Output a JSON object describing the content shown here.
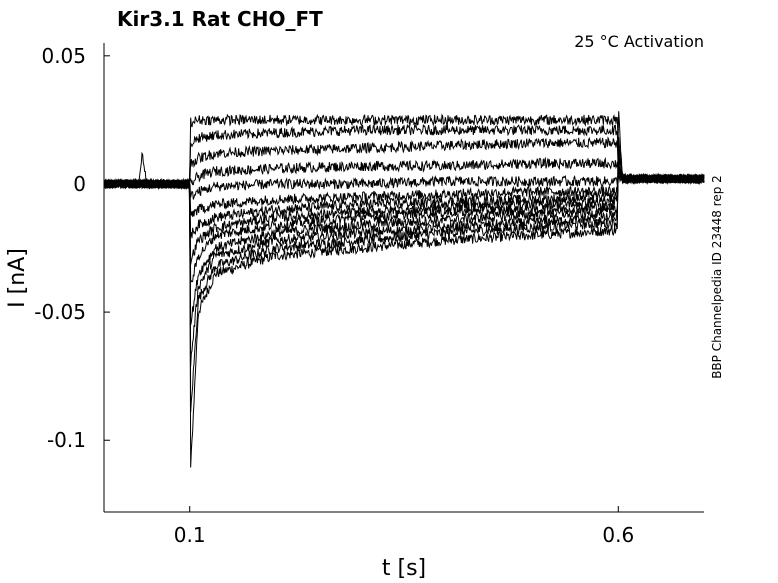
{
  "chart_data": {
    "type": "line",
    "title": "Kir3.1  Rat  CHO_FT",
    "annotation": "25 °C  Activation",
    "side_label": "BBP Channelpedia ID 23448 rep 2",
    "xlabel": "t [s]",
    "ylabel": "I [nA]",
    "xlim": [
      0.0,
      0.7
    ],
    "ylim": [
      -0.128,
      0.055
    ],
    "x_ticks": [
      0.1,
      0.6
    ],
    "x_tick_labels": [
      "0.1",
      "0.6"
    ],
    "y_ticks": [
      0.05,
      0,
      -0.05,
      -0.1
    ],
    "y_tick_labels": [
      "0.05",
      "0",
      "-0.05",
      "-0.1"
    ],
    "grid": false,
    "line_color": "#000000",
    "step_start": 0.1,
    "step_end": 0.6,
    "series": [
      {
        "values": [
          [
            0.0,
            0.0
          ],
          [
            0.04,
            0.0
          ],
          [
            0.045,
            0.012
          ],
          [
            0.05,
            0.0
          ],
          [
            0.1,
            0.0
          ],
          [
            0.101,
            -0.112
          ],
          [
            0.11,
            -0.05
          ],
          [
            0.13,
            -0.035
          ],
          [
            0.2,
            -0.028
          ],
          [
            0.3,
            -0.025
          ],
          [
            0.4,
            -0.022
          ],
          [
            0.5,
            -0.02
          ],
          [
            0.599,
            -0.018
          ],
          [
            0.6,
            0.03
          ],
          [
            0.605,
            0.002
          ],
          [
            0.7,
            0.002
          ]
        ]
      },
      {
        "values": [
          [
            0.0,
            0.0
          ],
          [
            0.1,
            0.0
          ],
          [
            0.101,
            -0.09
          ],
          [
            0.11,
            -0.045
          ],
          [
            0.13,
            -0.032
          ],
          [
            0.2,
            -0.025
          ],
          [
            0.3,
            -0.022
          ],
          [
            0.4,
            -0.019
          ],
          [
            0.5,
            -0.017
          ],
          [
            0.599,
            -0.015
          ],
          [
            0.6,
            0.02
          ],
          [
            0.605,
            0.002
          ],
          [
            0.7,
            0.002
          ]
        ]
      },
      {
        "values": [
          [
            0.0,
            0.0
          ],
          [
            0.1,
            0.0
          ],
          [
            0.101,
            -0.07
          ],
          [
            0.11,
            -0.04
          ],
          [
            0.13,
            -0.028
          ],
          [
            0.2,
            -0.022
          ],
          [
            0.3,
            -0.019
          ],
          [
            0.4,
            -0.017
          ],
          [
            0.5,
            -0.015
          ],
          [
            0.599,
            -0.013
          ],
          [
            0.6,
            0.015
          ],
          [
            0.605,
            0.002
          ],
          [
            0.7,
            0.002
          ]
        ]
      },
      {
        "values": [
          [
            0.0,
            0.0
          ],
          [
            0.1,
            0.0
          ],
          [
            0.101,
            -0.055
          ],
          [
            0.11,
            -0.035
          ],
          [
            0.13,
            -0.025
          ],
          [
            0.2,
            -0.019
          ],
          [
            0.3,
            -0.016
          ],
          [
            0.4,
            -0.014
          ],
          [
            0.5,
            -0.012
          ],
          [
            0.599,
            -0.011
          ],
          [
            0.6,
            0.01
          ],
          [
            0.605,
            0.002
          ],
          [
            0.7,
            0.002
          ]
        ]
      },
      {
        "values": [
          [
            0.0,
            0.0
          ],
          [
            0.1,
            0.0
          ],
          [
            0.101,
            -0.04
          ],
          [
            0.11,
            -0.028
          ],
          [
            0.13,
            -0.02
          ],
          [
            0.2,
            -0.016
          ],
          [
            0.3,
            -0.013
          ],
          [
            0.4,
            -0.011
          ],
          [
            0.5,
            -0.01
          ],
          [
            0.599,
            -0.009
          ],
          [
            0.6,
            0.008
          ],
          [
            0.605,
            0.002
          ],
          [
            0.7,
            0.002
          ]
        ]
      },
      {
        "values": [
          [
            0.0,
            0.0
          ],
          [
            0.1,
            0.0
          ],
          [
            0.101,
            -0.03
          ],
          [
            0.11,
            -0.022
          ],
          [
            0.13,
            -0.017
          ],
          [
            0.2,
            -0.013
          ],
          [
            0.3,
            -0.011
          ],
          [
            0.4,
            -0.009
          ],
          [
            0.5,
            -0.008
          ],
          [
            0.599,
            -0.007
          ],
          [
            0.6,
            0.006
          ],
          [
            0.605,
            0.002
          ],
          [
            0.7,
            0.002
          ]
        ]
      },
      {
        "values": [
          [
            0.0,
            0.0
          ],
          [
            0.1,
            0.0
          ],
          [
            0.101,
            -0.02
          ],
          [
            0.11,
            -0.016
          ],
          [
            0.13,
            -0.013
          ],
          [
            0.2,
            -0.01
          ],
          [
            0.3,
            -0.008
          ],
          [
            0.4,
            -0.007
          ],
          [
            0.5,
            -0.006
          ],
          [
            0.599,
            -0.005
          ],
          [
            0.6,
            0.005
          ],
          [
            0.605,
            0.002
          ],
          [
            0.7,
            0.002
          ]
        ]
      },
      {
        "values": [
          [
            0.0,
            0.0
          ],
          [
            0.1,
            0.0
          ],
          [
            0.101,
            -0.012
          ],
          [
            0.11,
            -0.01
          ],
          [
            0.13,
            -0.008
          ],
          [
            0.2,
            -0.006
          ],
          [
            0.3,
            -0.005
          ],
          [
            0.4,
            -0.004
          ],
          [
            0.5,
            -0.003
          ],
          [
            0.599,
            -0.003
          ],
          [
            0.6,
            0.004
          ],
          [
            0.605,
            0.002
          ],
          [
            0.7,
            0.002
          ]
        ]
      },
      {
        "values": [
          [
            0.0,
            0.0
          ],
          [
            0.1,
            0.0
          ],
          [
            0.101,
            -0.005
          ],
          [
            0.11,
            -0.003
          ],
          [
            0.13,
            -0.001
          ],
          [
            0.2,
            0.0
          ],
          [
            0.3,
            0.0
          ],
          [
            0.4,
            0.001
          ],
          [
            0.5,
            0.001
          ],
          [
            0.599,
            0.001
          ],
          [
            0.6,
            0.003
          ],
          [
            0.605,
            0.002
          ],
          [
            0.7,
            0.002
          ]
        ]
      },
      {
        "values": [
          [
            0.0,
            0.0
          ],
          [
            0.1,
            0.0
          ],
          [
            0.101,
            0.0
          ],
          [
            0.11,
            0.003
          ],
          [
            0.13,
            0.005
          ],
          [
            0.2,
            0.006
          ],
          [
            0.3,
            0.007
          ],
          [
            0.4,
            0.007
          ],
          [
            0.5,
            0.008
          ],
          [
            0.599,
            0.008
          ],
          [
            0.6,
            0.004
          ],
          [
            0.605,
            0.002
          ],
          [
            0.7,
            0.002
          ]
        ]
      },
      {
        "values": [
          [
            0.0,
            0.0
          ],
          [
            0.1,
            0.0
          ],
          [
            0.101,
            0.008
          ],
          [
            0.11,
            0.01
          ],
          [
            0.13,
            0.012
          ],
          [
            0.2,
            0.013
          ],
          [
            0.3,
            0.014
          ],
          [
            0.4,
            0.015
          ],
          [
            0.5,
            0.016
          ],
          [
            0.599,
            0.016
          ],
          [
            0.6,
            0.006
          ],
          [
            0.605,
            0.002
          ],
          [
            0.7,
            0.002
          ]
        ]
      },
      {
        "values": [
          [
            0.0,
            0.0
          ],
          [
            0.1,
            0.0
          ],
          [
            0.101,
            0.016
          ],
          [
            0.11,
            0.018
          ],
          [
            0.13,
            0.019
          ],
          [
            0.2,
            0.02
          ],
          [
            0.3,
            0.021
          ],
          [
            0.4,
            0.021
          ],
          [
            0.5,
            0.021
          ],
          [
            0.599,
            0.021
          ],
          [
            0.6,
            0.008
          ],
          [
            0.605,
            0.002
          ],
          [
            0.7,
            0.002
          ]
        ]
      },
      {
        "values": [
          [
            0.0,
            0.0
          ],
          [
            0.1,
            0.0
          ],
          [
            0.101,
            0.024
          ],
          [
            0.11,
            0.025
          ],
          [
            0.13,
            0.025
          ],
          [
            0.2,
            0.025
          ],
          [
            0.3,
            0.025
          ],
          [
            0.4,
            0.025
          ],
          [
            0.5,
            0.025
          ],
          [
            0.599,
            0.025
          ],
          [
            0.6,
            0.01
          ],
          [
            0.605,
            0.002
          ],
          [
            0.7,
            0.002
          ]
        ]
      }
    ]
  }
}
